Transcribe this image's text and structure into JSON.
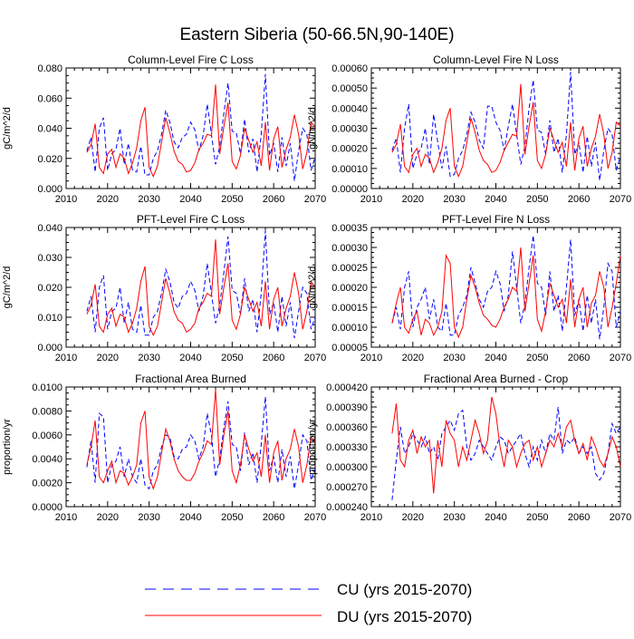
{
  "page_title": "Eastern Siberia (50-66.5N,90-140E)",
  "colors": {
    "cu": "#0000ff",
    "du": "#ff0000",
    "axis": "#000000"
  },
  "legend": {
    "cu_label": "CU (yrs 2015-2070)",
    "du_label": "DU (yrs 2015-2070)"
  },
  "chart_data": [
    {
      "type": "line",
      "title": "Column-Level Fire C Loss",
      "ylabel": "gC/m^2/d",
      "xlabel": "",
      "xlim": [
        2010,
        2070
      ],
      "ylim": [
        0,
        0.08
      ],
      "xticks": [
        2010,
        2020,
        2030,
        2040,
        2050,
        2060,
        2070
      ],
      "yticks": [
        0,
        0.02,
        0.04,
        0.06,
        0.08
      ],
      "ytick_labels": [
        "0.000",
        "0.020",
        "0.040",
        "0.060",
        "0.080"
      ],
      "series": [
        {
          "name": "CU",
          "style": "dashed",
          "color": "#0000ff",
          "x_start": 2015,
          "values": [
            0.025,
            0.034,
            0.011,
            0.04,
            0.047,
            0.012,
            0.023,
            0.026,
            0.04,
            0.016,
            0.03,
            0.012,
            0.011,
            0.028,
            0.009,
            0.009,
            0.02,
            0.025,
            0.036,
            0.052,
            0.044,
            0.031,
            0.027,
            0.034,
            0.036,
            0.044,
            0.039,
            0.025,
            0.035,
            0.056,
            0.036,
            0.016,
            0.028,
            0.05,
            0.07,
            0.038,
            0.037,
            0.023,
            0.046,
            0.024,
            0.033,
            0.011,
            0.036,
            0.076,
            0.022,
            0.03,
            0.011,
            0.034,
            0.015,
            0.03,
            0.005,
            0.025,
            0.04,
            0.036,
            0.012,
            0.021
          ]
        },
        {
          "name": "DU",
          "style": "solid",
          "color": "#ff0000",
          "x_start": 2015,
          "values": [
            0.024,
            0.029,
            0.043,
            0.014,
            0.01,
            0.023,
            0.026,
            0.014,
            0.023,
            0.02,
            0.01,
            0.017,
            0.027,
            0.045,
            0.054,
            0.014,
            0.008,
            0.015,
            0.031,
            0.047,
            0.037,
            0.025,
            0.018,
            0.016,
            0.011,
            0.012,
            0.017,
            0.026,
            0.03,
            0.036,
            0.035,
            0.069,
            0.023,
            0.041,
            0.057,
            0.018,
            0.013,
            0.022,
            0.04,
            0.032,
            0.024,
            0.031,
            0.015,
            0.044,
            0.012,
            0.033,
            0.041,
            0.014,
            0.026,
            0.034,
            0.049,
            0.036,
            0.013,
            0.024,
            0.044,
            0.041
          ]
        }
      ]
    },
    {
      "type": "line",
      "title": "Column-Level Fire N Loss",
      "ylabel": "gN/m^2/d",
      "xlabel": "",
      "xlim": [
        2010,
        2070
      ],
      "ylim": [
        0,
        0.0006
      ],
      "xticks": [
        2010,
        2020,
        2030,
        2040,
        2050,
        2060,
        2070
      ],
      "yticks": [
        0,
        0.0001,
        0.0002,
        0.0003,
        0.0004,
        0.0005,
        0.0006
      ],
      "ytick_labels": [
        "0.00000",
        "0.00010",
        "0.00020",
        "0.00030",
        "0.00040",
        "0.00050",
        "0.00060"
      ],
      "series": [
        {
          "name": "CU",
          "style": "dashed",
          "color": "#0000ff",
          "x_start": 2015,
          "values": [
            0.00019,
            0.00025,
            8e-05,
            0.0003,
            0.00042,
            0.0001,
            0.00017,
            0.0002,
            0.0003,
            0.00012,
            0.00037,
            0.00023,
            0.0001,
            0.00021,
            6e-05,
            7e-05,
            0.00015,
            0.00019,
            0.00027,
            0.00038,
            0.00033,
            0.00024,
            0.0002,
            0.00041,
            0.00041,
            0.00033,
            0.00029,
            0.00019,
            0.00031,
            0.00042,
            0.00027,
            0.00012,
            0.00021,
            0.0004,
            0.00054,
            0.00029,
            0.00028,
            0.00017,
            0.00034,
            0.00018,
            0.00025,
            8e-05,
            0.00027,
            0.00058,
            0.00017,
            0.00023,
            8e-05,
            0.00026,
            0.00011,
            0.00023,
            4e-05,
            0.00019,
            0.0003,
            0.00027,
            9e-05,
            0.00016
          ]
        },
        {
          "name": "DU",
          "style": "solid",
          "color": "#ff0000",
          "x_start": 2015,
          "values": [
            0.00018,
            0.00022,
            0.00032,
            0.00011,
            8e-05,
            0.00017,
            0.0002,
            0.00011,
            0.00017,
            0.00015,
            8e-05,
            0.00013,
            0.0002,
            0.00034,
            0.0004,
            0.00011,
            6e-05,
            0.00011,
            0.00023,
            0.00035,
            0.00028,
            0.00019,
            0.00014,
            0.00012,
            8e-05,
            9e-05,
            0.00013,
            0.00019,
            0.00023,
            0.00027,
            0.00026,
            0.00052,
            0.00017,
            0.00031,
            0.00043,
            0.00014,
            0.0001,
            0.00017,
            0.0003,
            0.00024,
            0.00018,
            0.00023,
            0.00011,
            0.00033,
            9e-05,
            0.00025,
            0.00031,
            0.00011,
            0.0002,
            0.00026,
            0.00037,
            0.00027,
            0.0001,
            0.00018,
            0.00033,
            0.00031
          ]
        }
      ]
    },
    {
      "type": "line",
      "title": "PFT-Level Fire C Loss",
      "ylabel": "gC/m^2/d",
      "xlabel": "",
      "xlim": [
        2010,
        2070
      ],
      "ylim": [
        0,
        0.04
      ],
      "xticks": [
        2010,
        2020,
        2030,
        2040,
        2050,
        2060,
        2070
      ],
      "yticks": [
        0,
        0.01,
        0.02,
        0.03,
        0.04
      ],
      "ytick_labels": [
        "0.000",
        "0.010",
        "0.020",
        "0.030",
        "0.040"
      ],
      "series": [
        {
          "name": "CU",
          "style": "dashed",
          "color": "#0000ff",
          "x_start": 2015,
          "values": [
            0.012,
            0.017,
            0.005,
            0.02,
            0.024,
            0.006,
            0.012,
            0.013,
            0.02,
            0.008,
            0.015,
            0.006,
            0.005,
            0.014,
            0.004,
            0.004,
            0.01,
            0.012,
            0.018,
            0.026,
            0.022,
            0.015,
            0.013,
            0.017,
            0.018,
            0.022,
            0.019,
            0.012,
            0.017,
            0.028,
            0.018,
            0.008,
            0.014,
            0.025,
            0.037,
            0.019,
            0.018,
            0.011,
            0.023,
            0.012,
            0.016,
            0.005,
            0.018,
            0.039,
            0.011,
            0.015,
            0.005,
            0.017,
            0.007,
            0.015,
            0.003,
            0.012,
            0.02,
            0.018,
            0.006,
            0.01
          ]
        },
        {
          "name": "DU",
          "style": "solid",
          "color": "#ff0000",
          "x_start": 2015,
          "values": [
            0.011,
            0.014,
            0.021,
            0.007,
            0.005,
            0.011,
            0.013,
            0.007,
            0.011,
            0.01,
            0.005,
            0.008,
            0.013,
            0.022,
            0.027,
            0.007,
            0.004,
            0.007,
            0.015,
            0.023,
            0.018,
            0.012,
            0.009,
            0.008,
            0.005,
            0.006,
            0.008,
            0.013,
            0.015,
            0.018,
            0.017,
            0.036,
            0.011,
            0.02,
            0.028,
            0.009,
            0.006,
            0.011,
            0.02,
            0.016,
            0.012,
            0.015,
            0.007,
            0.022,
            0.006,
            0.016,
            0.02,
            0.007,
            0.013,
            0.017,
            0.025,
            0.018,
            0.006,
            0.012,
            0.022,
            0.02
          ]
        }
      ]
    },
    {
      "type": "line",
      "title": "PFT-Level Fire N Loss",
      "ylabel": "gN/m^2/d",
      "xlabel": "",
      "xlim": [
        2010,
        2070
      ],
      "ylim": [
        5e-05,
        0.00035
      ],
      "xticks": [
        2010,
        2020,
        2030,
        2040,
        2050,
        2060,
        2070
      ],
      "yticks": [
        5e-05,
        0.0001,
        0.00015,
        0.0002,
        0.00025,
        0.0003,
        0.00035
      ],
      "ytick_labels": [
        "0.00005",
        "0.00010",
        "0.00015",
        "0.00020",
        "0.00025",
        "0.00030",
        "0.00035"
      ],
      "series": [
        {
          "name": "CU",
          "style": "dashed",
          "color": "#0000ff",
          "x_start": 2015,
          "values": [
            0.00011,
            0.00015,
            9.5e-05,
            0.0002,
            0.00024,
            0.0001,
            0.00015,
            0.00017,
            0.0002,
            0.00012,
            0.00017,
            0.0001,
            9e-05,
            0.00016,
            8e-05,
            8e-05,
            0.00013,
            0.00015,
            0.00018,
            0.00025,
            0.00021,
            0.00017,
            0.00015,
            0.00019,
            0.0002,
            0.00024,
            0.00021,
            0.00014,
            0.00018,
            0.00029,
            0.0002,
            0.00011,
            0.00016,
            0.00025,
            0.00033,
            0.00021,
            0.0002,
            0.00013,
            0.00024,
            0.00014,
            0.00018,
            9e-05,
            0.0002,
            0.00032,
            0.00013,
            0.00017,
            9e-05,
            0.00018,
            0.00011,
            0.00017,
            7e-05,
            0.00015,
            0.00026,
            0.00024,
            0.0001,
            0.00014
          ]
        },
        {
          "name": "DU",
          "style": "solid",
          "color": "#ff0000",
          "x_start": 2015,
          "values": [
            0.00011,
            0.00016,
            0.0002,
            0.0001,
            8.5e-05,
            0.00012,
            0.00014,
            8e-05,
            0.00012,
            0.00011,
            8e-05,
            0.0001,
            0.00014,
            0.00028,
            0.00026,
            0.0001,
            7.5e-05,
            0.0001,
            0.00017,
            0.00023,
            0.0002,
            0.00016,
            0.00013,
            0.00012,
            0.000105,
            0.0001,
            0.00012,
            0.00015,
            0.00017,
            0.0002,
            0.00019,
            0.0003,
            0.00014,
            0.00021,
            0.00028,
            0.00012,
            9e-05,
            0.00014,
            0.00021,
            0.00018,
            0.00015,
            0.00017,
            0.00011,
            0.00022,
            0.0001,
            0.00017,
            0.0002,
            0.0001,
            0.00016,
            0.00018,
            0.00024,
            0.0002,
            0.0001,
            0.00015,
            0.00021,
            0.00028
          ]
        }
      ]
    },
    {
      "type": "line",
      "title": "Fractional Area Burned",
      "ylabel": "proportion/yr",
      "xlabel": "",
      "xlim": [
        2010,
        2070
      ],
      "ylim": [
        0,
        0.01
      ],
      "xticks": [
        2010,
        2020,
        2030,
        2040,
        2050,
        2060,
        2070
      ],
      "yticks": [
        0,
        0.002,
        0.004,
        0.006,
        0.008,
        0.01
      ],
      "ytick_labels": [
        "0.0000",
        "0.0020",
        "0.0040",
        "0.0060",
        "0.0080",
        "0.0100"
      ],
      "series": [
        {
          "name": "CU",
          "style": "dashed",
          "color": "#0000ff",
          "x_start": 2015,
          "values": [
            0.0033,
            0.0055,
            0.002,
            0.0078,
            0.0075,
            0.002,
            0.0035,
            0.0038,
            0.005,
            0.0025,
            0.004,
            0.0025,
            0.002,
            0.004,
            0.0018,
            0.0015,
            0.003,
            0.0035,
            0.005,
            0.006,
            0.0058,
            0.0042,
            0.004,
            0.0048,
            0.005,
            0.006,
            0.0055,
            0.004,
            0.005,
            0.0078,
            0.006,
            0.0025,
            0.004,
            0.0066,
            0.0088,
            0.0052,
            0.005,
            0.003,
            0.0062,
            0.0035,
            0.0045,
            0.002,
            0.0052,
            0.0092,
            0.003,
            0.0042,
            0.002,
            0.0048,
            0.0025,
            0.0042,
            0.0015,
            0.0035,
            0.006,
            0.0055,
            0.0022,
            0.0032
          ]
        },
        {
          "name": "DU",
          "style": "solid",
          "color": "#ff0000",
          "x_start": 2015,
          "values": [
            0.0035,
            0.005,
            0.0072,
            0.0025,
            0.002,
            0.003,
            0.0038,
            0.002,
            0.003,
            0.0028,
            0.0018,
            0.0025,
            0.0035,
            0.007,
            0.008,
            0.0025,
            0.0015,
            0.0025,
            0.0045,
            0.0065,
            0.0055,
            0.004,
            0.003,
            0.0025,
            0.0022,
            0.0022,
            0.0028,
            0.0038,
            0.0045,
            0.0055,
            0.0052,
            0.0098,
            0.0035,
            0.006,
            0.008,
            0.003,
            0.002,
            0.0035,
            0.006,
            0.0048,
            0.0038,
            0.0045,
            0.0025,
            0.006,
            0.002,
            0.0045,
            0.0055,
            0.0022,
            0.004,
            0.0048,
            0.0065,
            0.005,
            0.002,
            0.0035,
            0.0058,
            0.0055
          ]
        }
      ]
    },
    {
      "type": "line",
      "title": "Fractional Area Burned - Crop",
      "ylabel": "proportion/yr",
      "xlabel": "",
      "xlim": [
        2010,
        2070
      ],
      "ylim": [
        0.00024,
        0.00042
      ],
      "xticks": [
        2010,
        2020,
        2030,
        2040,
        2050,
        2060,
        2070
      ],
      "yticks": [
        0.00024,
        0.00027,
        0.0003,
        0.00033,
        0.00036,
        0.00039,
        0.00042
      ],
      "ytick_labels": [
        "0.000240",
        "0.000270",
        "0.000300",
        "0.000330",
        "0.000360",
        "0.000390",
        "0.000420"
      ],
      "series": [
        {
          "name": "CU",
          "style": "dashed",
          "color": "#0000ff",
          "x_start": 2015,
          "values": [
            0.00025,
            0.00031,
            0.00036,
            0.00032,
            0.00033,
            0.00035,
            0.00034,
            0.00033,
            0.000345,
            0.00032,
            0.00033,
            0.00031,
            0.00035,
            0.00036,
            0.00037,
            0.000355,
            0.00038,
            0.000385,
            0.00033,
            0.00031,
            0.00032,
            0.00034,
            0.00033,
            0.00032,
            0.00031,
            0.00033,
            0.000345,
            0.00034,
            0.00032,
            0.00033,
            0.00034,
            0.00035,
            0.00032,
            0.0003,
            0.00033,
            0.00031,
            0.00034,
            0.00032,
            0.00035,
            0.00034,
            0.00039,
            0.00032,
            0.00034,
            0.000335,
            0.000345,
            0.00032,
            0.00033,
            0.00032,
            0.00033,
            0.00029,
            0.00028,
            0.00029,
            0.00032,
            0.000365,
            0.00035,
            0.00036
          ]
        },
        {
          "name": "DU",
          "style": "solid",
          "color": "#ff0000",
          "x_start": 2015,
          "values": [
            0.00035,
            0.000395,
            0.00031,
            0.0003,
            0.00034,
            0.000355,
            0.00032,
            0.000345,
            0.00033,
            0.00034,
            0.00026,
            0.00034,
            0.0003,
            0.00037,
            0.00035,
            0.00034,
            0.0003,
            0.00033,
            0.00031,
            0.00034,
            0.00037,
            0.00035,
            0.00032,
            0.00034,
            0.000405,
            0.00038,
            0.00033,
            0.0003,
            0.00034,
            0.00033,
            0.0003,
            0.00032,
            0.000335,
            0.00034,
            0.00031,
            0.00033,
            0.0003,
            0.00032,
            0.00034,
            0.00033,
            0.00035,
            0.00033,
            0.00036,
            0.00037,
            0.00034,
            0.00032,
            0.000335,
            0.00031,
            0.000345,
            0.00033,
            0.00031,
            0.0003,
            0.00032,
            0.000345,
            0.00033,
            0.0003
          ]
        }
      ]
    }
  ]
}
